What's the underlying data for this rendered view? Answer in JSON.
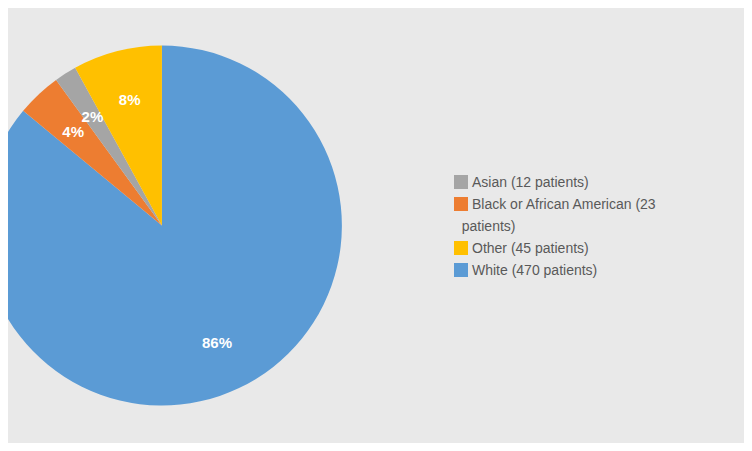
{
  "chart_data": {
    "type": "pie",
    "categories": [
      "White (470 patients)",
      "Black or African American (23\n  patients)",
      "Asian (12 patients)",
      "Other (45 patients)"
    ],
    "values": [
      86,
      4,
      2,
      8
    ],
    "value_labels": [
      "86%",
      "4%",
      "2%",
      "8%"
    ],
    "colors": [
      "#5B9BD5",
      "#ED7D31",
      "#A5A5A5",
      "#FFC000"
    ],
    "data_labels": true,
    "legend": "right"
  }
}
